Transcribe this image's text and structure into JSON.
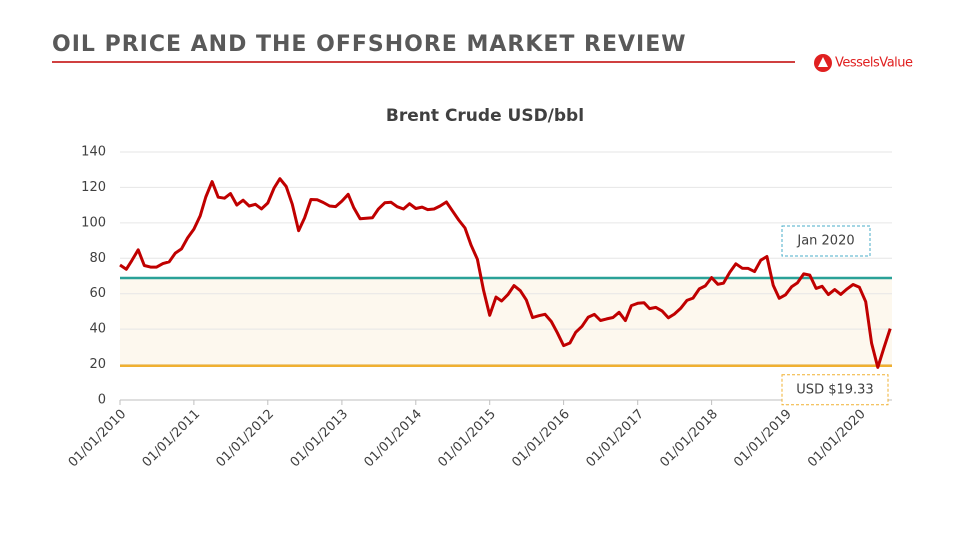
{
  "header": {
    "title": "OIL PRICE AND THE OFFSHORE MARKET REVIEW",
    "logo": "VesselsValue"
  },
  "chart_data": {
    "type": "line",
    "title": "Brent Crude USD/bbl",
    "color": "#c00000",
    "x": [
      "2010-01-01",
      "2010-02-01",
      "2010-03-01",
      "2010-04-01",
      "2010-05-01",
      "2010-06-01",
      "2010-07-01",
      "2010-08-01",
      "2010-09-01",
      "2010-10-01",
      "2010-11-01",
      "2010-12-01",
      "2011-01-01",
      "2011-02-01",
      "2011-03-01",
      "2011-04-01",
      "2011-05-01",
      "2011-06-01",
      "2011-07-01",
      "2011-08-01",
      "2011-09-01",
      "2011-10-01",
      "2011-11-01",
      "2011-12-01",
      "2012-01-01",
      "2012-02-01",
      "2012-03-01",
      "2012-04-01",
      "2012-05-01",
      "2012-06-01",
      "2012-07-01",
      "2012-08-01",
      "2012-09-01",
      "2012-10-01",
      "2012-11-01",
      "2012-12-01",
      "2013-01-01",
      "2013-02-01",
      "2013-03-01",
      "2013-04-01",
      "2013-05-01",
      "2013-06-01",
      "2013-07-01",
      "2013-08-01",
      "2013-09-01",
      "2013-10-01",
      "2013-11-01",
      "2013-12-01",
      "2014-01-01",
      "2014-02-01",
      "2014-03-01",
      "2014-04-01",
      "2014-05-01",
      "2014-06-01",
      "2014-07-01",
      "2014-08-01",
      "2014-09-01",
      "2014-10-01",
      "2014-11-01",
      "2014-12-01",
      "2015-01-01",
      "2015-02-01",
      "2015-03-01",
      "2015-04-01",
      "2015-05-01",
      "2015-06-01",
      "2015-07-01",
      "2015-08-01",
      "2015-09-01",
      "2015-10-01",
      "2015-11-01",
      "2015-12-01",
      "2016-01-01",
      "2016-02-01",
      "2016-03-01",
      "2016-04-01",
      "2016-05-01",
      "2016-06-01",
      "2016-07-01",
      "2016-08-01",
      "2016-09-01",
      "2016-10-01",
      "2016-11-01",
      "2016-12-01",
      "2017-01-01",
      "2017-02-01",
      "2017-03-01",
      "2017-04-01",
      "2017-05-01",
      "2017-06-01",
      "2017-07-01",
      "2017-08-01",
      "2017-09-01",
      "2017-10-01",
      "2017-11-01",
      "2017-12-01",
      "2018-01-01",
      "2018-02-01",
      "2018-03-01",
      "2018-04-01",
      "2018-05-01",
      "2018-06-01",
      "2018-07-01",
      "2018-08-01",
      "2018-09-01",
      "2018-10-01",
      "2018-11-01",
      "2018-12-01",
      "2019-01-01",
      "2019-02-01",
      "2019-03-01",
      "2019-04-01",
      "2019-05-01",
      "2019-06-01",
      "2019-07-01",
      "2019-08-01",
      "2019-09-01",
      "2019-10-01",
      "2019-11-01",
      "2019-12-01",
      "2020-01-01",
      "2020-02-01",
      "2020-03-01",
      "2020-04-01",
      "2020-05-01",
      "2020-06-01"
    ],
    "values": [
      76.2,
      73.8,
      78.8,
      84.8,
      75.9,
      75.0,
      75.0,
      77.0,
      78.0,
      82.9,
      85.3,
      91.5,
      96.5,
      104.0,
      114.6,
      123.3,
      114.5,
      113.9,
      116.5,
      110.1,
      112.8,
      109.5,
      110.5,
      107.9,
      111.2,
      119.7,
      124.9,
      120.5,
      110.5,
      95.6,
      102.8,
      113.2,
      113.0,
      111.5,
      109.5,
      109.2,
      112.3,
      116.1,
      108.5,
      102.3,
      102.6,
      102.9,
      107.9,
      111.3,
      111.6,
      109.1,
      107.8,
      110.8,
      108.1,
      108.9,
      107.5,
      107.8,
      109.5,
      111.8,
      106.8,
      101.6,
      97.1,
      87.4,
      79.4,
      62.3,
      47.8,
      58.1,
      55.9,
      59.5,
      64.6,
      61.7,
      56.5,
      46.5,
      47.6,
      48.4,
      44.3,
      38.0,
      30.7,
      32.2,
      38.2,
      41.6,
      46.7,
      48.3,
      44.9,
      45.8,
      46.6,
      49.5,
      44.8,
      53.3,
      54.6,
      54.9,
      51.6,
      52.3,
      50.3,
      46.4,
      48.5,
      51.7,
      56.2,
      57.5,
      62.7,
      64.4,
      69.1,
      65.3,
      66.0,
      72.1,
      76.9,
      74.4,
      74.3,
      72.5,
      78.9,
      81.0,
      64.8,
      57.4,
      59.4,
      64.0,
      66.1,
      71.2,
      70.5,
      63.0,
      64.2,
      59.5,
      62.3,
      59.6,
      62.7,
      65.2,
      63.6,
      55.5,
      32.0,
      18.4,
      29.4,
      40.3
    ],
    "xlim": [
      "2010-01-01",
      "2020-06-10"
    ],
    "xticks": [
      {
        "value": "2010-01-01",
        "label": "01/01/2010"
      },
      {
        "value": "2011-01-01",
        "label": "01/01/2011"
      },
      {
        "value": "2012-01-01",
        "label": "01/01/2012"
      },
      {
        "value": "2013-01-01",
        "label": "01/01/2013"
      },
      {
        "value": "2014-01-01",
        "label": "01/01/2014"
      },
      {
        "value": "2015-01-01",
        "label": "01/01/2015"
      },
      {
        "value": "2016-01-01",
        "label": "01/01/2016"
      },
      {
        "value": "2017-01-01",
        "label": "01/01/2017"
      },
      {
        "value": "2018-01-01",
        "label": "01/01/2018"
      },
      {
        "value": "2019-01-01",
        "label": "01/01/2019"
      },
      {
        "value": "2020-01-01",
        "label": "01/01/2020"
      }
    ],
    "ylim": [
      0,
      140
    ],
    "yticks": [
      0,
      20,
      40,
      60,
      80,
      100,
      120,
      140
    ],
    "grid": true,
    "reference_lines": [
      {
        "value": 68.9,
        "label": "Jan 2020",
        "color": "#2aa198",
        "box_color": "#4aaec8"
      },
      {
        "value": 19.33,
        "label": "USD $19.33",
        "color": "#f0b030",
        "box_color": "#f0b030"
      }
    ],
    "band_color": "#fdf8ee"
  }
}
